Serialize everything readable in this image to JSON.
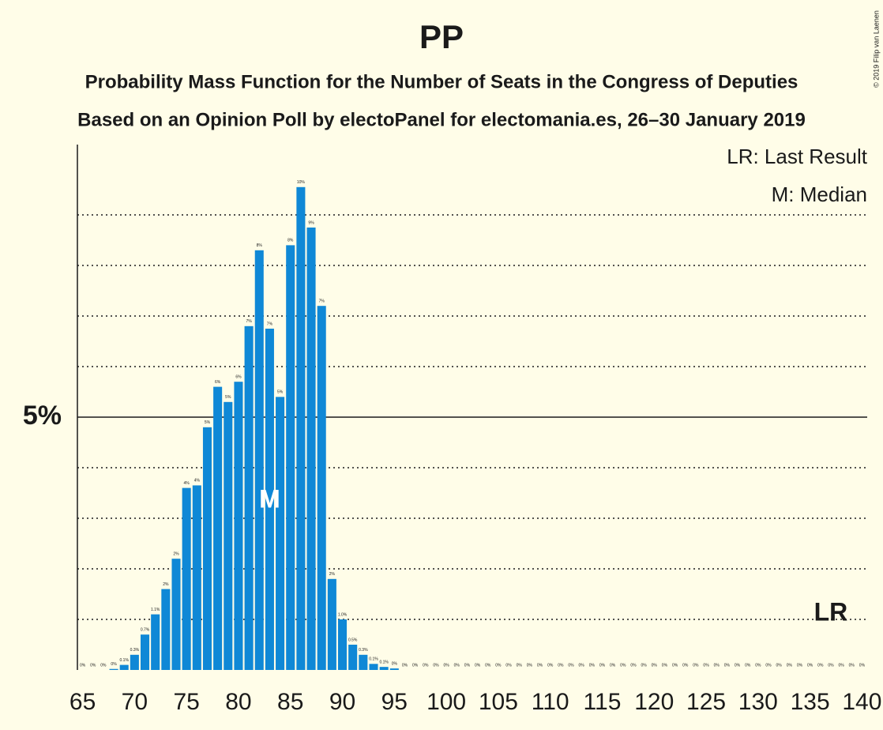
{
  "chart_data": {
    "type": "bar",
    "title": "PP",
    "subtitle": "Probability Mass Function for the Number of Seats in the Congress of Deputies",
    "subtitle2": "Based on an Opinion Poll by electoPanel for electomania.es, 26–30 January 2019",
    "credit": "© 2019 Filip van Laenen",
    "legend_notes": [
      "LR: Last Result",
      "M: Median"
    ],
    "color": "#0f88d6",
    "x": [
      65,
      66,
      67,
      68,
      69,
      70,
      71,
      72,
      73,
      74,
      75,
      76,
      77,
      78,
      79,
      80,
      81,
      82,
      83,
      84,
      85,
      86,
      87,
      88,
      89,
      90,
      91,
      92,
      93,
      94,
      95,
      96,
      97,
      98,
      99,
      100,
      101,
      102,
      103,
      104,
      105,
      106,
      107,
      108,
      109,
      110,
      111,
      112,
      113,
      114,
      115,
      116,
      117,
      118,
      119,
      120,
      121,
      122,
      123,
      124,
      125,
      126,
      127,
      128,
      129,
      130,
      131,
      132,
      133,
      134,
      135,
      136,
      137,
      138,
      139,
      140
    ],
    "values": [
      0,
      0,
      0,
      0.02,
      0.1,
      0.3,
      0.7,
      1.1,
      1.6,
      2.2,
      3.6,
      3.65,
      4.8,
      5.6,
      5.3,
      5.7,
      6.8,
      8.3,
      6.75,
      5.4,
      8.4,
      9.55,
      8.75,
      7.2,
      1.8,
      1.0,
      0.5,
      0.3,
      0.12,
      0.06,
      0.03,
      0,
      0,
      0,
      0,
      0,
      0,
      0,
      0,
      0,
      0,
      0,
      0,
      0,
      0,
      0,
      0,
      0,
      0,
      0,
      0,
      0,
      0,
      0,
      0,
      0,
      0,
      0,
      0,
      0,
      0,
      0,
      0,
      0,
      0,
      0,
      0,
      0,
      0,
      0,
      0,
      0,
      0,
      0,
      0,
      0
    ],
    "value_labels": [
      "0%",
      "0%",
      "0%",
      "0%",
      "0.1%",
      "0.3%",
      "0.7%",
      "1.1%",
      "2%",
      "2%",
      "4%",
      "4%",
      "5%",
      "6%",
      "5%",
      "6%",
      "7%",
      "8%",
      "7%",
      "5%",
      "8%",
      "10%",
      "9%",
      "7%",
      "2%",
      "1.0%",
      "0.5%",
      "0.3%",
      "0.1%",
      "0.1%",
      "0%",
      "0%",
      "0%",
      "0%",
      "0%",
      "0%",
      "0%",
      "0%",
      "0%",
      "0%",
      "0%",
      "0%",
      "0%",
      "0%",
      "0%",
      "0%",
      "0%",
      "0%",
      "0%",
      "0%",
      "0%",
      "0%",
      "0%",
      "0%",
      "0%",
      "0%",
      "0%",
      "0%",
      "0%",
      "0%",
      "0%",
      "0%",
      "0%",
      "0%",
      "0%",
      "0%",
      "0%",
      "0%",
      "0%",
      "0%",
      "0%",
      "0%",
      "0%",
      "0%",
      "0%",
      "0%"
    ],
    "xlim": [
      64.5,
      140.5
    ],
    "xticks": [
      65,
      70,
      75,
      80,
      85,
      90,
      95,
      100,
      105,
      110,
      115,
      120,
      125,
      130,
      135,
      140
    ],
    "ylim": [
      0,
      10.4
    ],
    "yticks": [
      {
        "value": 5,
        "label": "5%"
      }
    ],
    "y_gridlines": [
      1,
      2,
      3,
      4,
      6,
      7,
      8,
      9
    ],
    "annotations": [
      {
        "text": "M",
        "x": 83
      },
      {
        "text": "LR",
        "x": 137
      }
    ]
  }
}
